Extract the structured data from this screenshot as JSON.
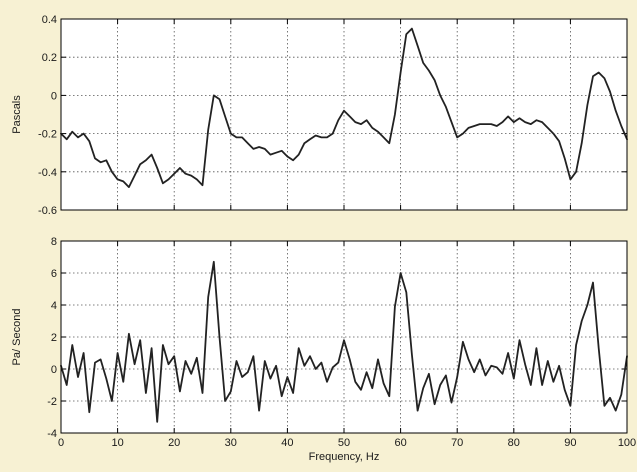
{
  "colors": {
    "background": "#f7f1d3",
    "plot_area": "#ffffff",
    "line": "#222222",
    "grid": "#555555"
  },
  "chart_data": [
    {
      "type": "line",
      "ylabel": "Pascals",
      "xlabel": "",
      "xlim": [
        0,
        100
      ],
      "ylim": [
        -0.6,
        0.4
      ],
      "xticks": [
        0,
        10,
        20,
        30,
        40,
        50,
        60,
        70,
        80,
        90,
        100
      ],
      "yticks": [
        -0.6,
        -0.4,
        -0.2,
        0,
        0.2,
        0.4
      ],
      "ytick_labels": [
        "-0.6",
        "-0.4",
        "-0.2",
        "0",
        "0.2",
        "0.4"
      ],
      "show_xtick_labels": false,
      "grid": true,
      "series": [
        {
          "x": [
            0,
            1,
            2,
            3,
            4,
            5,
            6,
            7,
            8,
            9,
            10,
            11,
            12,
            13,
            14,
            15,
            16,
            17,
            18,
            19,
            20,
            21,
            22,
            23,
            24,
            25,
            26,
            27,
            28,
            29,
            30,
            31,
            32,
            33,
            34,
            35,
            36,
            37,
            38,
            39,
            40,
            41,
            42,
            43,
            44,
            45,
            46,
            47,
            48,
            49,
            50,
            51,
            52,
            53,
            54,
            55,
            56,
            57,
            58,
            59,
            60,
            61,
            62,
            63,
            64,
            65,
            66,
            67,
            68,
            69,
            70,
            71,
            72,
            73,
            74,
            75,
            76,
            77,
            78,
            79,
            80,
            81,
            82,
            83,
            84,
            85,
            86,
            87,
            88,
            89,
            90,
            91,
            92,
            93,
            94,
            95,
            96,
            97,
            98,
            99,
            100
          ],
          "y": [
            -0.2,
            -0.23,
            -0.19,
            -0.22,
            -0.2,
            -0.24,
            -0.33,
            -0.35,
            -0.34,
            -0.4,
            -0.44,
            -0.45,
            -0.48,
            -0.42,
            -0.36,
            -0.34,
            -0.31,
            -0.38,
            -0.46,
            -0.44,
            -0.41,
            -0.38,
            -0.41,
            -0.42,
            -0.44,
            -0.47,
            -0.18,
            0.0,
            -0.02,
            -0.11,
            -0.2,
            -0.22,
            -0.22,
            -0.25,
            -0.28,
            -0.27,
            -0.28,
            -0.31,
            -0.3,
            -0.29,
            -0.32,
            -0.34,
            -0.31,
            -0.25,
            -0.23,
            -0.21,
            -0.22,
            -0.22,
            -0.2,
            -0.13,
            -0.08,
            -0.11,
            -0.14,
            -0.15,
            -0.13,
            -0.17,
            -0.19,
            -0.22,
            -0.25,
            -0.1,
            0.12,
            0.32,
            0.35,
            0.26,
            0.17,
            0.13,
            0.08,
            0.0,
            -0.06,
            -0.14,
            -0.22,
            -0.2,
            -0.17,
            -0.16,
            -0.15,
            -0.15,
            -0.15,
            -0.16,
            -0.14,
            -0.11,
            -0.14,
            -0.12,
            -0.14,
            -0.15,
            -0.13,
            -0.14,
            -0.17,
            -0.2,
            -0.24,
            -0.33,
            -0.44,
            -0.4,
            -0.25,
            -0.05,
            0.1,
            0.12,
            0.09,
            0.02,
            -0.08,
            -0.16,
            -0.23
          ]
        }
      ]
    },
    {
      "type": "line",
      "ylabel": "Pa/ Second",
      "xlabel": "Frequency, Hz",
      "xlim": [
        0,
        100
      ],
      "ylim": [
        -4,
        8
      ],
      "xticks": [
        0,
        10,
        20,
        30,
        40,
        50,
        60,
        70,
        80,
        90,
        100
      ],
      "xtick_labels": [
        "0",
        "10",
        "20",
        "30",
        "40",
        "50",
        "60",
        "70",
        "80",
        "90",
        "100"
      ],
      "yticks": [
        -4,
        -2,
        0,
        2,
        4,
        6,
        8
      ],
      "ytick_labels": [
        "-4",
        "-2",
        "0",
        "2",
        "4",
        "6",
        "8"
      ],
      "show_xtick_labels": true,
      "grid": true,
      "series": [
        {
          "x": [
            0,
            1,
            2,
            3,
            4,
            5,
            6,
            7,
            8,
            9,
            10,
            11,
            12,
            13,
            14,
            15,
            16,
            17,
            18,
            19,
            20,
            21,
            22,
            23,
            24,
            25,
            26,
            27,
            28,
            29,
            30,
            31,
            32,
            33,
            34,
            35,
            36,
            37,
            38,
            39,
            40,
            41,
            42,
            43,
            44,
            45,
            46,
            47,
            48,
            49,
            50,
            51,
            52,
            53,
            54,
            55,
            56,
            57,
            58,
            59,
            60,
            61,
            62,
            63,
            64,
            65,
            66,
            67,
            68,
            69,
            70,
            71,
            72,
            73,
            74,
            75,
            76,
            77,
            78,
            79,
            80,
            81,
            82,
            83,
            84,
            85,
            86,
            87,
            88,
            89,
            90,
            91,
            92,
            93,
            94,
            95,
            96,
            97,
            98,
            99,
            100
          ],
          "y": [
            0.2,
            -1.0,
            1.5,
            -0.5,
            1.0,
            -2.7,
            0.4,
            0.6,
            -0.6,
            -2.0,
            1.0,
            -0.8,
            2.2,
            0.3,
            1.8,
            -1.5,
            1.3,
            -3.3,
            1.5,
            0.3,
            0.8,
            -1.4,
            0.5,
            -0.3,
            0.7,
            -1.5,
            4.5,
            6.7,
            2.0,
            -2.0,
            -1.4,
            0.5,
            -0.5,
            -0.2,
            0.8,
            -2.6,
            0.5,
            -0.6,
            0.2,
            -1.7,
            -0.5,
            -1.5,
            1.3,
            0.2,
            0.8,
            0.0,
            0.4,
            -0.8,
            0.1,
            0.4,
            1.8,
            0.6,
            -0.8,
            -1.3,
            -0.2,
            -1.2,
            0.6,
            -0.9,
            -1.7,
            3.9,
            6.0,
            4.8,
            0.9,
            -2.6,
            -1.2,
            -0.3,
            -2.2,
            -1.0,
            -0.4,
            -2.1,
            -0.5,
            1.7,
            0.6,
            -0.2,
            0.6,
            -0.4,
            0.2,
            0.1,
            -0.3,
            1.0,
            -0.6,
            1.8,
            0.3,
            -1.0,
            1.3,
            -1.0,
            0.5,
            -0.8,
            0.2,
            -1.3,
            -2.3,
            1.5,
            3.0,
            4.0,
            5.4,
            1.3,
            -2.3,
            -1.8,
            -2.6,
            -1.6,
            0.8
          ]
        }
      ]
    }
  ]
}
